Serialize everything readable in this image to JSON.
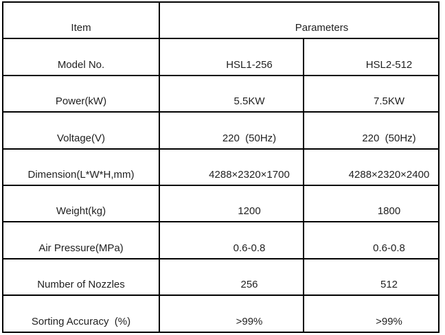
{
  "table": {
    "header": {
      "item": "Item",
      "parameters": "Parameters"
    },
    "rows": [
      {
        "label": "Model No.",
        "value1": "HSL1-256",
        "value2": "HSL2-512"
      },
      {
        "label": "Power(kW)",
        "value1": "5.5KW",
        "value2": "7.5KW"
      },
      {
        "label": "Voltage(V)",
        "value1": "220  (50Hz)",
        "value2": "220  (50Hz)"
      },
      {
        "label": "Dimension(L*W*H,mm)",
        "value1": "4288×2320×1700",
        "value2": "4288×2320×2400"
      },
      {
        "label": "Weight(kg)",
        "value1": "1200",
        "value2": "1800"
      },
      {
        "label": "Air Pressure(MPa)",
        "value1": "0.6-0.8",
        "value2": "0.6-0.8"
      },
      {
        "label": "Number of Nozzles",
        "value1": "256",
        "value2": "512"
      },
      {
        "label": "Sorting Accuracy  (%)",
        "value1": ">99%",
        "value2": ">99%"
      }
    ],
    "colors": {
      "border": "#000000",
      "text": "#1f1f1f",
      "background": "#ffffff"
    }
  }
}
